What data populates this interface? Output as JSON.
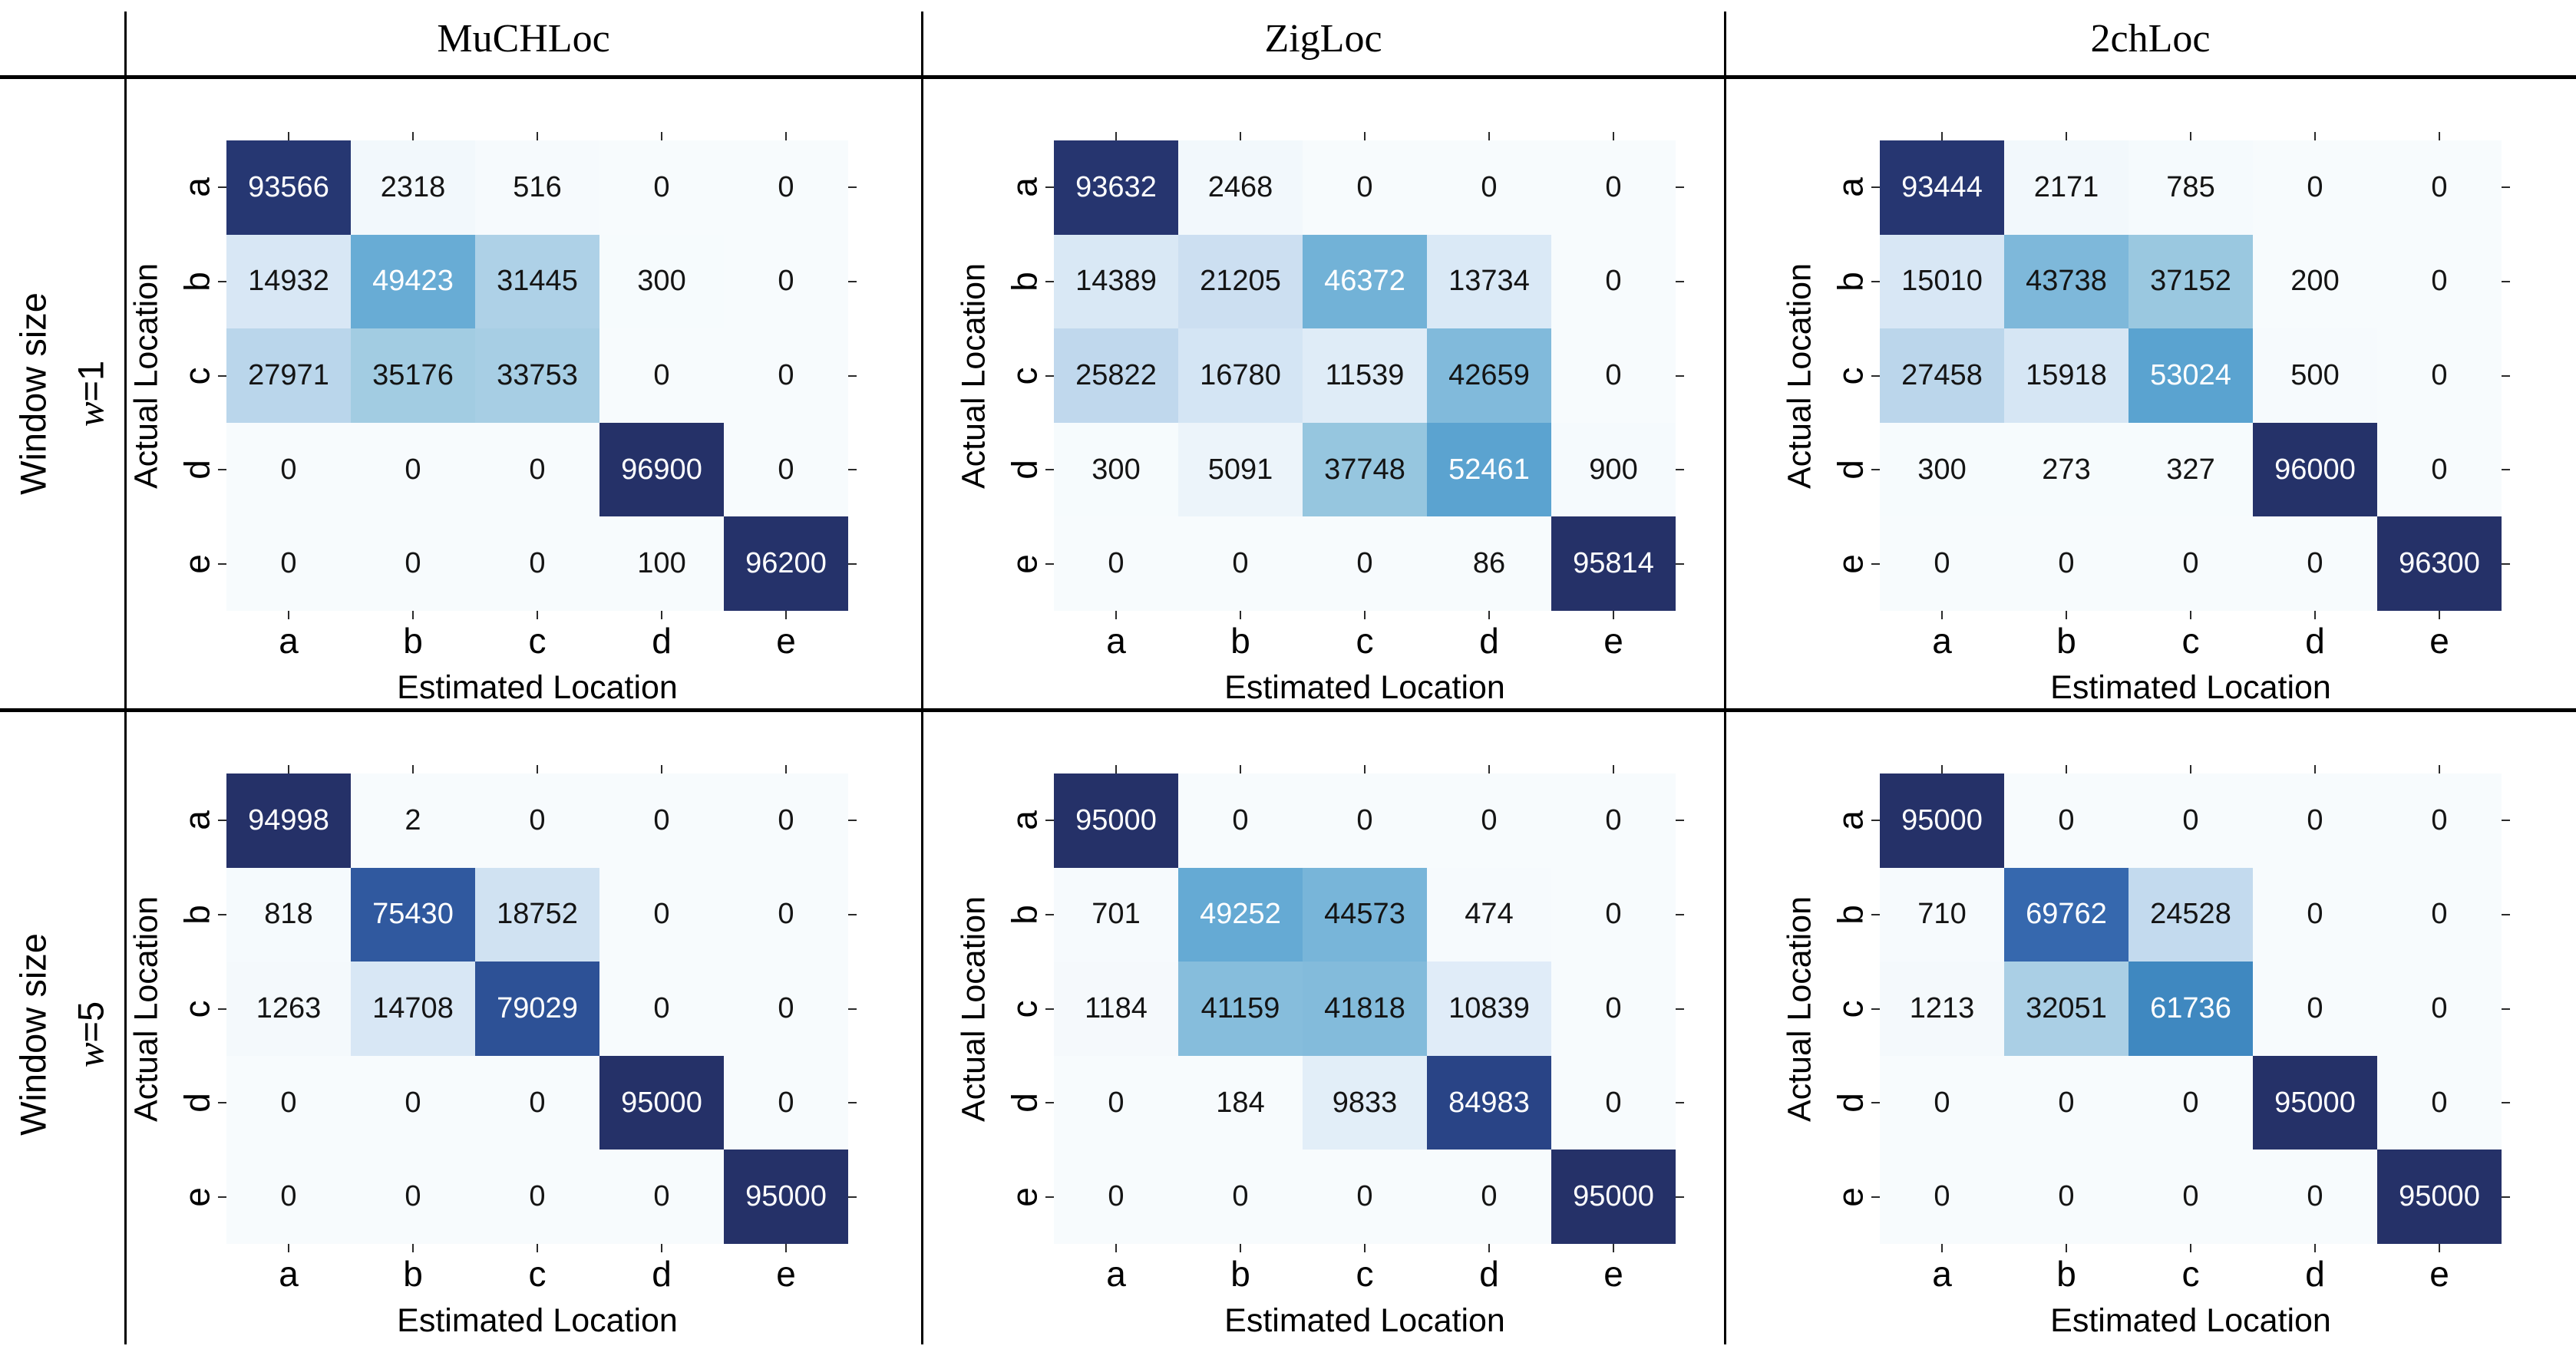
{
  "figure": {
    "columns": [
      {
        "label": "MuCHLoc"
      },
      {
        "label": "ZigLoc"
      },
      {
        "label": "2chLoc"
      }
    ],
    "rows": [
      {
        "title": "Window size",
        "var": "w",
        "eq": "=1"
      },
      {
        "title": "Window size",
        "var": "w",
        "eq": "=5"
      }
    ],
    "axis": {
      "x_label": "Estimated Location",
      "y_label": "Actual Location",
      "x_ticks": [
        "a",
        "b",
        "c",
        "d",
        "e"
      ],
      "y_ticks": [
        "a",
        "b",
        "c",
        "d",
        "e"
      ]
    },
    "colors": {
      "cell_low": "#f7fafd",
      "cell_high": "#253168",
      "annot_dark": "#141414",
      "annot_light": "#ffffff",
      "rule": "#000000",
      "tick": "#2b2b2b"
    }
  },
  "chart_data": {
    "type": "heatmap",
    "categories_x": [
      "a",
      "b",
      "c",
      "d",
      "e"
    ],
    "categories_y": [
      "a",
      "b",
      "c",
      "d",
      "e"
    ],
    "xlabel": "Estimated Location",
    "ylabel": "Actual Location",
    "legend": "none",
    "panels": [
      {
        "method": "MuCHLoc",
        "window": "w=1",
        "values": [
          [
            93566,
            2318,
            516,
            0,
            0
          ],
          [
            14932,
            49423,
            31445,
            300,
            0
          ],
          [
            27971,
            35176,
            33753,
            0,
            0
          ],
          [
            0,
            0,
            0,
            96900,
            0
          ],
          [
            0,
            0,
            0,
            100,
            96200
          ]
        ]
      },
      {
        "method": "ZigLoc",
        "window": "w=1",
        "values": [
          [
            93632,
            2468,
            0,
            0,
            0
          ],
          [
            14389,
            21205,
            46372,
            13734,
            0
          ],
          [
            25822,
            16780,
            11539,
            42659,
            0
          ],
          [
            300,
            5091,
            37748,
            52461,
            900
          ],
          [
            0,
            0,
            0,
            86,
            95814
          ]
        ]
      },
      {
        "method": "2chLoc",
        "window": "w=1",
        "values": [
          [
            93444,
            2171,
            785,
            0,
            0
          ],
          [
            15010,
            43738,
            37152,
            200,
            0
          ],
          [
            27458,
            15918,
            53024,
            500,
            0
          ],
          [
            300,
            273,
            327,
            96000,
            0
          ],
          [
            0,
            0,
            0,
            0,
            96300
          ]
        ]
      },
      {
        "method": "MuCHLoc",
        "window": "w=5",
        "values": [
          [
            94998,
            2,
            0,
            0,
            0
          ],
          [
            818,
            75430,
            18752,
            0,
            0
          ],
          [
            1263,
            14708,
            79029,
            0,
            0
          ],
          [
            0,
            0,
            0,
            95000,
            0
          ],
          [
            0,
            0,
            0,
            0,
            95000
          ]
        ]
      },
      {
        "method": "ZigLoc",
        "window": "w=5",
        "values": [
          [
            95000,
            0,
            0,
            0,
            0
          ],
          [
            701,
            49252,
            44573,
            474,
            0
          ],
          [
            1184,
            41159,
            41818,
            10839,
            0
          ],
          [
            0,
            184,
            9833,
            84983,
            0
          ],
          [
            0,
            0,
            0,
            0,
            95000
          ]
        ]
      },
      {
        "method": "2chLoc",
        "window": "w=5",
        "values": [
          [
            95000,
            0,
            0,
            0,
            0
          ],
          [
            710,
            69762,
            24528,
            0,
            0
          ],
          [
            1213,
            32051,
            61736,
            0,
            0
          ],
          [
            0,
            0,
            0,
            95000,
            0
          ],
          [
            0,
            0,
            0,
            0,
            95000
          ]
        ]
      }
    ]
  }
}
